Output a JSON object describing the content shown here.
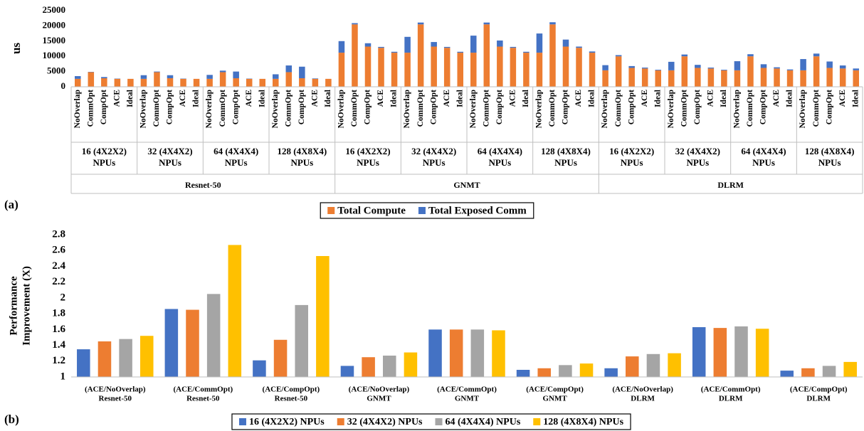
{
  "chart_data": [
    {
      "type": "stacked_bar",
      "panel_label": "(a)",
      "ylabel": "us",
      "categories": [
        "NoOverlap",
        "CommOpt",
        "CompOpt",
        "ACE",
        "Ideal",
        "NoOverlap",
        "CommOpt",
        "CompOpt",
        "ACE",
        "Ideal",
        "NoOverlap",
        "CommOpt",
        "CompOpt",
        "ACE",
        "Ideal",
        "NoOverlap",
        "CommOpt",
        "CompOpt",
        "ACE",
        "Ideal",
        "NoOverlap",
        "CommOpt",
        "CompOpt",
        "ACE",
        "Ideal",
        "NoOverlap",
        "CommOpt",
        "CompOpt",
        "ACE",
        "Ideal",
        "NoOverlap",
        "CommOpt",
        "CompOpt",
        "ACE",
        "Ideal",
        "NoOverlap",
        "CommOpt",
        "CompOpt",
        "ACE",
        "Ideal",
        "NoOverlap",
        "CommOpt",
        "CompOpt",
        "ACE",
        "Ideal",
        "NoOverlap",
        "CommOpt",
        "CompOpt",
        "ACE",
        "Ideal",
        "NoOverlap",
        "CommOpt",
        "CompOpt",
        "ACE",
        "Ideal",
        "NoOverlap",
        "CommOpt",
        "CompOpt",
        "ACE",
        "Ideal"
      ],
      "groups": [
        [
          "16 (4X2X2)",
          "NPUs"
        ],
        [
          "32 (4X4X2)",
          "NPUs"
        ],
        [
          "64 (4X4X4)",
          "NPUs"
        ],
        [
          "128 (4X8X4)",
          "NPUs"
        ],
        [
          "16 (4X2X2)",
          "NPUs"
        ],
        [
          "32 (4X4X2)",
          "NPUs"
        ],
        [
          "64 (4X4X4)",
          "NPUs"
        ],
        [
          "128 (4X8X4)",
          "NPUs"
        ],
        [
          "16 (4X2X2)",
          "NPUs"
        ],
        [
          "32 (4X4X2)",
          "NPUs"
        ],
        [
          "64 (4X4X4)",
          "NPUs"
        ],
        [
          "128 (4X8X4)",
          "NPUs"
        ]
      ],
      "supergroups": [
        "Resnet-50",
        "GNMT",
        "DLRM"
      ],
      "series": [
        {
          "name": "Total Compute",
          "color": "#ed7d31",
          "values": [
            2600,
            4800,
            2800,
            2600,
            2600,
            2600,
            4800,
            2800,
            2600,
            2600,
            2600,
            4800,
            2800,
            2600,
            2600,
            2600,
            4800,
            2800,
            2600,
            2600,
            11200,
            20500,
            13200,
            12800,
            11200,
            11200,
            20500,
            13200,
            12800,
            11200,
            11200,
            20500,
            13200,
            12800,
            11200,
            11200,
            20500,
            13200,
            12800,
            11200,
            5400,
            10000,
            6200,
            6000,
            5400,
            5400,
            10000,
            6200,
            6000,
            5400,
            5400,
            10000,
            6200,
            6000,
            5400,
            5400,
            10000,
            6200,
            6000,
            5400
          ]
        },
        {
          "name": "Total Exposed Comm",
          "color": "#4472c4",
          "values": [
            900,
            100,
            400,
            100,
            0,
            1200,
            200,
            1000,
            100,
            0,
            1300,
            500,
            2200,
            100,
            0,
            1500,
            2200,
            3800,
            150,
            0,
            3800,
            400,
            1100,
            300,
            300,
            5200,
            600,
            1500,
            300,
            300,
            5600,
            600,
            2000,
            300,
            300,
            6300,
            700,
            2300,
            400,
            400,
            1700,
            400,
            600,
            300,
            200,
            2800,
            600,
            1000,
            300,
            200,
            3000,
            700,
            1200,
            400,
            300,
            3700,
            900,
            2100,
            1000,
            600
          ]
        }
      ],
      "ylim": [
        0,
        25000
      ],
      "yticks": [
        0,
        5000,
        10000,
        15000,
        20000,
        25000
      ],
      "grid": false,
      "legend": "bottom"
    },
    {
      "type": "bar",
      "panel_label": "(b)",
      "ylabel": [
        "Performance",
        "Improvement (X)"
      ],
      "categories": [
        [
          "(ACE/NoOverlap)",
          "Resnet-50"
        ],
        [
          "(ACE/CommOpt)",
          "Resnet-50"
        ],
        [
          "(ACE/CompOpt)",
          "Resnet-50"
        ],
        [
          "(ACE/NoOverlap)",
          "GNMT"
        ],
        [
          "(ACE/CommOpt)",
          "GNMT"
        ],
        [
          "(ACE/CompOpt)",
          "GNMT"
        ],
        [
          "(ACE/NoOverlap)",
          "DLRM"
        ],
        [
          "(ACE/CommOpt)",
          "DLRM"
        ],
        [
          "(ACE/CompOpt)",
          "DLRM"
        ]
      ],
      "series": [
        {
          "name": "16 (4X2X2) NPUs",
          "color": "#4472c4",
          "values": [
            1.35,
            1.86,
            1.21,
            1.14,
            1.6,
            1.09,
            1.11,
            1.63,
            1.08
          ]
        },
        {
          "name": "32 (4X4X2) NPUs",
          "color": "#ed7d31",
          "values": [
            1.45,
            1.85,
            1.47,
            1.25,
            1.6,
            1.11,
            1.26,
            1.62,
            1.11
          ]
        },
        {
          "name": "64 (4X4X4) NPUs",
          "color": "#a5a5a5",
          "values": [
            1.48,
            2.05,
            1.91,
            1.27,
            1.6,
            1.15,
            1.29,
            1.64,
            1.14
          ]
        },
        {
          "name": "128 (4X8X4) NPUs",
          "color": "#ffc000",
          "values": [
            1.52,
            2.67,
            2.53,
            1.31,
            1.59,
            1.17,
            1.3,
            1.61,
            1.19
          ]
        }
      ],
      "ylim": [
        1,
        2.8
      ],
      "yticks": [
        1,
        1.2,
        1.4,
        1.6,
        1.8,
        2,
        2.2,
        2.4,
        2.6,
        2.8
      ],
      "grid": false,
      "legend": "bottom"
    }
  ]
}
